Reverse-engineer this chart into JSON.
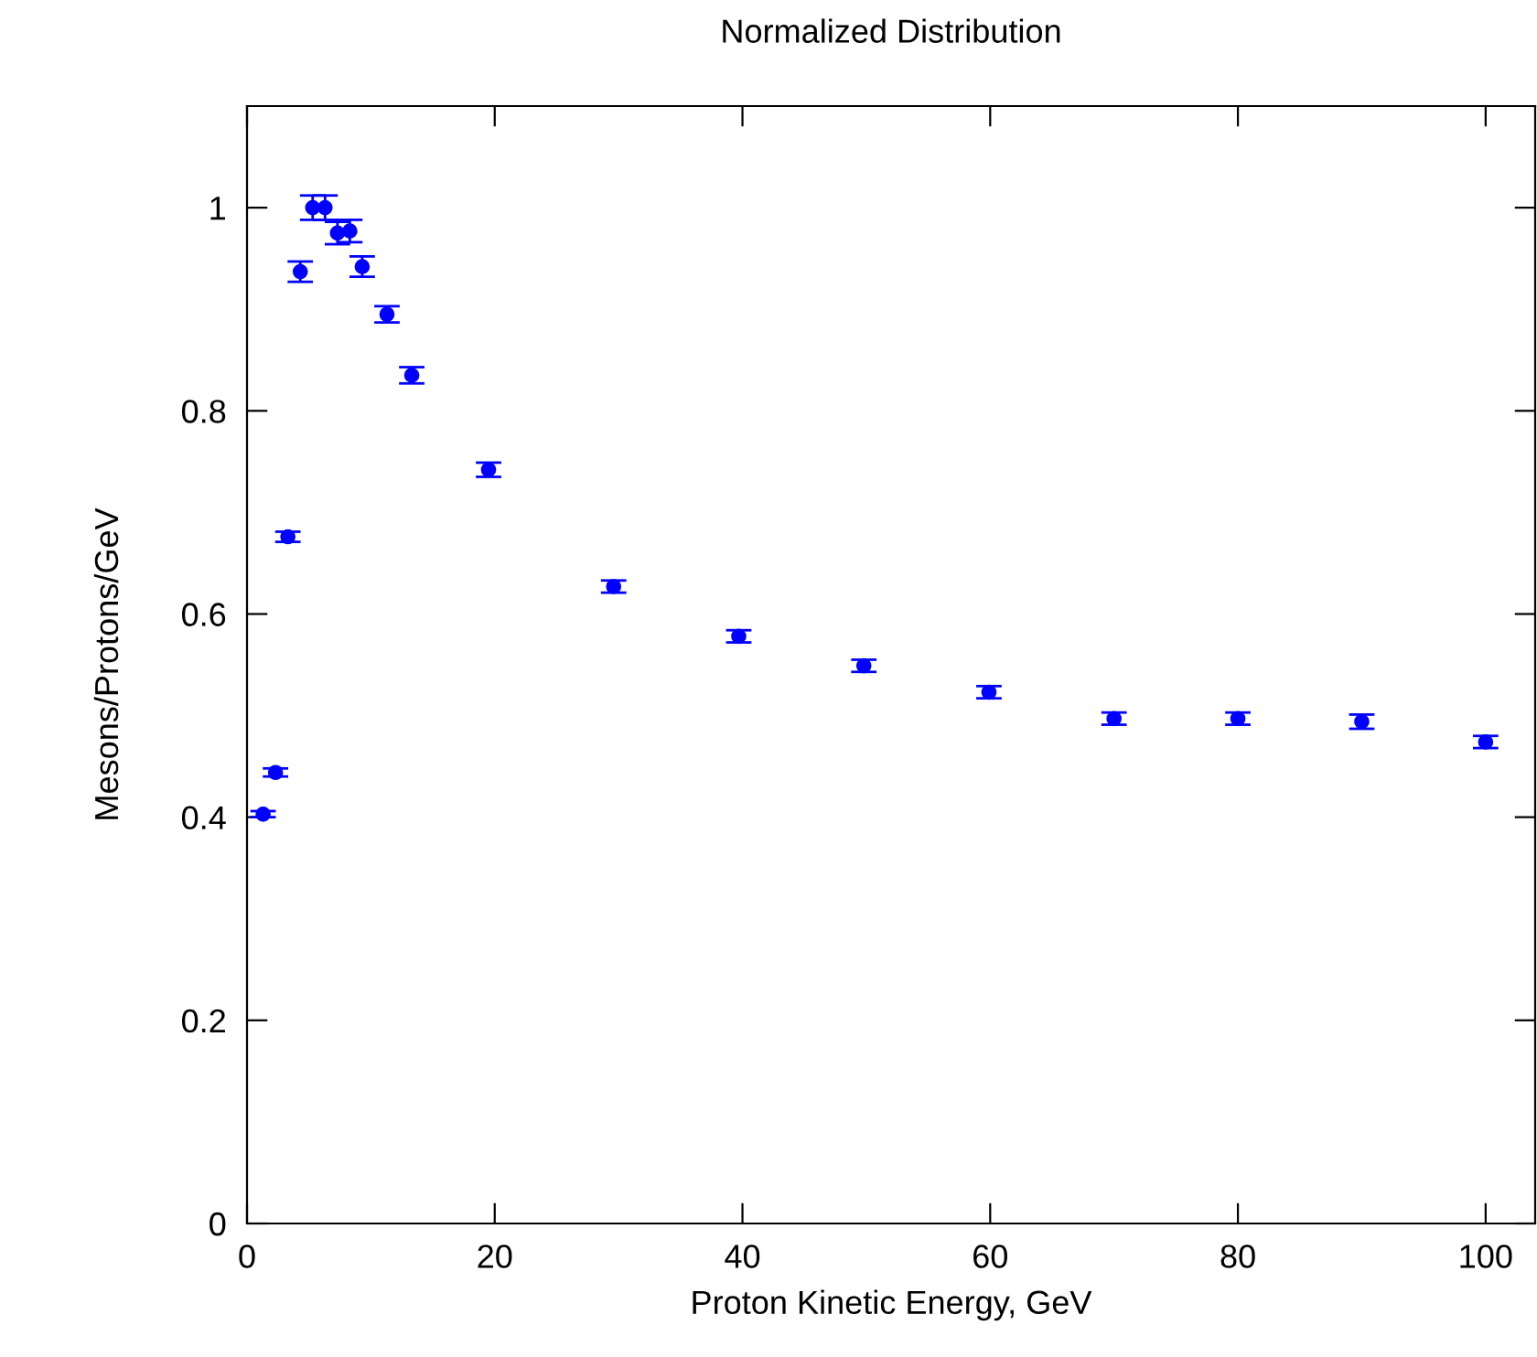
{
  "chart_data": {
    "type": "scatter",
    "title": "Normalized Distribution",
    "xlabel": "Proton Kinetic Energy, GeV",
    "ylabel": "Mesons/Protons/GeV",
    "x": [
      1.3,
      2.3,
      3.3,
      4.3,
      5.3,
      6.3,
      7.3,
      8.3,
      9.3,
      11.3,
      13.3,
      19.5,
      29.6,
      39.7,
      49.8,
      59.9,
      70,
      80,
      90,
      100
    ],
    "series": [
      {
        "color": "#0000ff",
        "values": [
          0.403,
          0.444,
          0.676,
          0.937,
          1.0,
          1.0,
          0.975,
          0.977,
          0.942,
          0.895,
          0.835,
          0.742,
          0.627,
          0.578,
          0.549,
          0.523,
          0.497,
          0.497,
          0.494,
          0.474
        ],
        "errors": [
          0.003,
          0.004,
          0.005,
          0.01,
          0.012,
          0.012,
          0.011,
          0.011,
          0.01,
          0.008,
          0.008,
          0.007,
          0.006,
          0.006,
          0.006,
          0.006,
          0.006,
          0.006,
          0.007,
          0.006
        ]
      }
    ],
    "xlim": [
      0,
      104
    ],
    "ylim": [
      0,
      1.1
    ],
    "xticks": [
      0,
      20,
      40,
      60,
      80,
      100
    ],
    "yticks": [
      0,
      0.2,
      0.4,
      0.6,
      0.8,
      1
    ],
    "marker": "circle",
    "grid": false,
    "legend": false
  }
}
